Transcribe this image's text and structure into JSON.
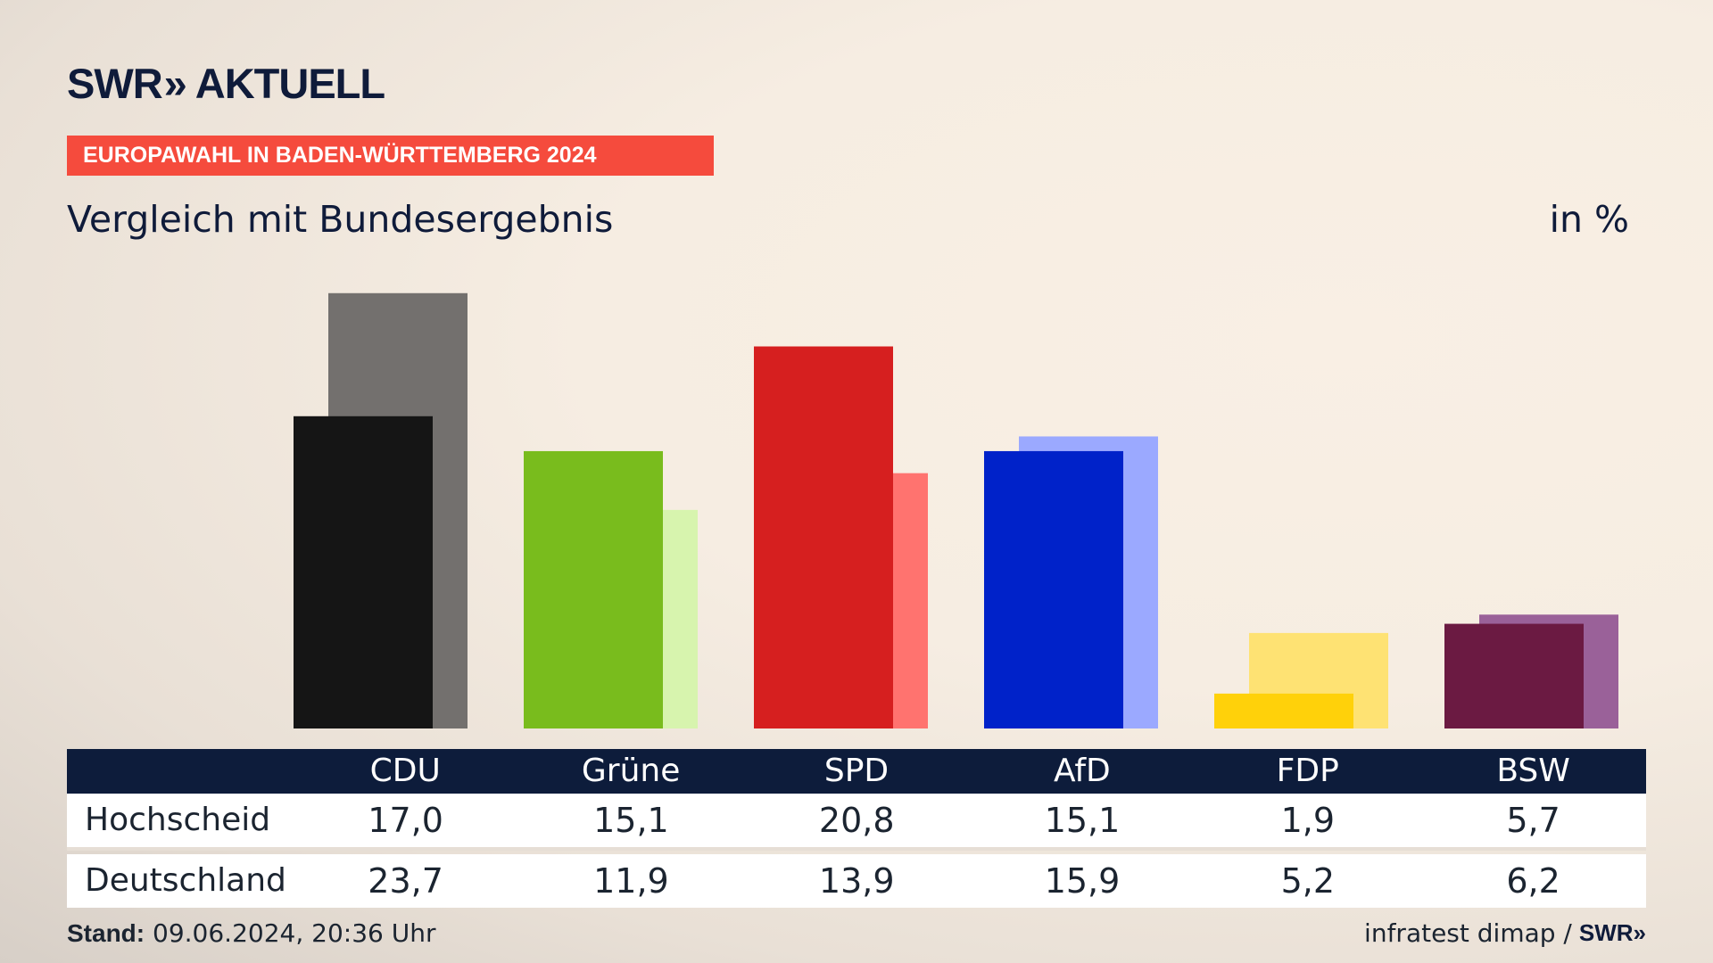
{
  "header": {
    "logo_text": "SWR",
    "logo_chevron": "»",
    "logo_text2": "AKTUELL",
    "ribbon": "EUROPAWAHL IN BADEN-WÜRTTEMBERG 2024",
    "subtitle": "Vergleich mit Bundesergebnis",
    "unit": "in %"
  },
  "table": {
    "row_labels": [
      "Hochscheid",
      "Deutschland"
    ]
  },
  "footer": {
    "stand_label": "Stand:",
    "stand_value": " 09.06.2024, 20:36 Uhr",
    "source": "infratest dimap /",
    "source_logo": "SWR»"
  },
  "colors": {
    "title_text": "#0f1b3a",
    "ribbon": "#f54b3d",
    "table_header": "#0d1c3b"
  },
  "chart_data": {
    "type": "bar",
    "categories": [
      "CDU",
      "Grüne",
      "SPD",
      "AfD",
      "FDP",
      "BSW"
    ],
    "series": [
      {
        "name": "Hochscheid",
        "values": [
          17.0,
          15.1,
          20.8,
          15.1,
          1.9,
          5.7
        ]
      },
      {
        "name": "Deutschland",
        "values": [
          23.7,
          11.9,
          13.9,
          15.9,
          5.2,
          6.2
        ]
      }
    ],
    "labels": {
      "Hochscheid": [
        "17,0",
        "15,1",
        "20,8",
        "15,1",
        "1,9",
        "5,7"
      ],
      "Deutschland": [
        "23,7",
        "11,9",
        "13,9",
        "15,9",
        "5,2",
        "6,2"
      ]
    },
    "front_colors": [
      "#151515",
      "#79bc1d",
      "#d61f1f",
      "#0022c9",
      "#ffd10a",
      "#6b1a42"
    ],
    "back_colors": [
      "#73706e",
      "#d7f4ae",
      "#ff736f",
      "#9ba9ff",
      "#fee273",
      "#9a6199"
    ],
    "ylim": [
      0,
      25
    ],
    "grid": false,
    "legend": "table-below"
  }
}
